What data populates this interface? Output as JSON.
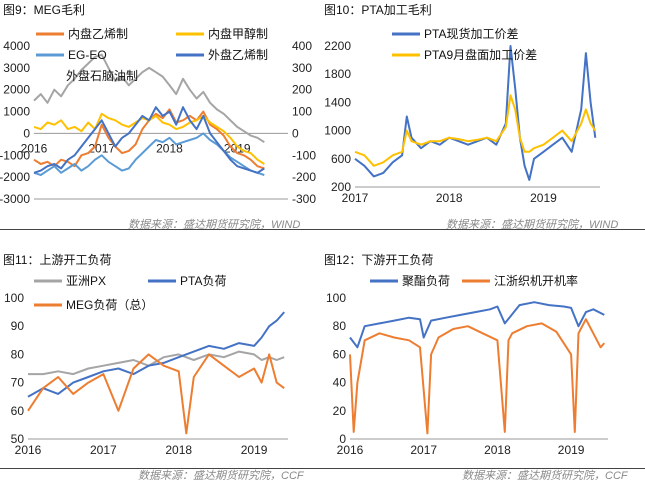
{
  "colors": {
    "orange": "#ED7D31",
    "gold": "#FFC000",
    "lightblue": "#5B9BD5",
    "blue": "#4472C4",
    "grey": "#A5A5A5"
  },
  "sources": {
    "top_left": "数据来源：盛达期货研究院，WIND",
    "top_right": "数据来源：盛达期货研究院，WIND",
    "bottom_left": "数据来源：盛达期货研究院，CCF",
    "bottom_right": "数据来源：盛达期货研究院，CCF"
  },
  "chart_data": [
    {
      "type": "line",
      "title": "图9：MEG毛利",
      "x_ticks": [
        "2016",
        "2017",
        "2018",
        "2019"
      ],
      "x_range": [
        2016.0,
        2019.75
      ],
      "ylim_left": [
        -3000,
        4000
      ],
      "yticks_left": [
        4000,
        3000,
        2000,
        1000,
        0,
        -1000,
        -2000,
        -3000
      ],
      "ylim_right": [
        -300,
        400
      ],
      "yticks_right": [
        400,
        300,
        200,
        100,
        0,
        -100,
        -200,
        -300
      ],
      "legend_position": "top",
      "series": [
        {
          "name": "内盘乙烯制",
          "color": "#ED7D31",
          "axis": "left",
          "x": [
            2016.0,
            2016.1,
            2016.2,
            2016.3,
            2016.4,
            2016.5,
            2016.6,
            2016.7,
            2016.8,
            2016.9,
            2017.0,
            2017.1,
            2017.2,
            2017.3,
            2017.4,
            2017.5,
            2017.6,
            2017.7,
            2017.8,
            2017.9,
            2018.0,
            2018.1,
            2018.2,
            2018.3,
            2018.4,
            2018.5,
            2018.6,
            2018.7,
            2018.8,
            2018.9,
            2019.0,
            2019.1,
            2019.2,
            2019.3,
            2019.4
          ],
          "values": [
            -1200,
            -1400,
            -1300,
            -1500,
            -1200,
            -1300,
            -1500,
            -1000,
            -900,
            -600,
            400,
            -200,
            -600,
            -900,
            -800,
            -500,
            200,
            600,
            900,
            700,
            1100,
            500,
            600,
            800,
            600,
            1000,
            400,
            200,
            -100,
            -600,
            -900,
            -1000,
            -1200,
            -1500,
            -1600
          ]
        },
        {
          "name": "内盘甲醇制",
          "color": "#FFC000",
          "axis": "left",
          "x": [
            2016.0,
            2016.1,
            2016.2,
            2016.3,
            2016.4,
            2016.5,
            2016.6,
            2016.7,
            2016.8,
            2016.9,
            2017.0,
            2017.1,
            2017.2,
            2017.3,
            2017.4,
            2017.5,
            2017.6,
            2017.7,
            2017.8,
            2017.9,
            2018.0,
            2018.1,
            2018.2,
            2018.3,
            2018.4,
            2018.5,
            2018.6,
            2018.7,
            2018.8,
            2018.9,
            2019.0,
            2019.1,
            2019.2,
            2019.3,
            2019.4
          ],
          "values": [
            300,
            200,
            500,
            400,
            600,
            200,
            300,
            100,
            500,
            200,
            900,
            700,
            600,
            400,
            300,
            500,
            700,
            600,
            800,
            500,
            400,
            200,
            300,
            500,
            600,
            800,
            500,
            300,
            100,
            -200,
            -600,
            -800,
            -900,
            -1200,
            -1400
          ]
        },
        {
          "name": "EG-EO",
          "color": "#5B9BD5",
          "axis": "left",
          "x": [
            2016.0,
            2016.1,
            2016.2,
            2016.3,
            2016.4,
            2016.5,
            2016.6,
            2016.7,
            2016.8,
            2016.9,
            2017.0,
            2017.1,
            2017.2,
            2017.3,
            2017.4,
            2017.5,
            2017.6,
            2017.7,
            2017.8,
            2017.9,
            2018.0,
            2018.1,
            2018.2,
            2018.3,
            2018.4,
            2018.5,
            2018.6,
            2018.7,
            2018.8,
            2018.9,
            2019.0,
            2019.1,
            2019.2,
            2019.3,
            2019.4
          ],
          "values": [
            -1800,
            -1900,
            -1700,
            -1500,
            -1800,
            -1600,
            -1400,
            -1700,
            -1500,
            -1200,
            -1000,
            -1300,
            -1500,
            -1700,
            -1600,
            -1200,
            -900,
            -600,
            -300,
            -400,
            -200,
            -500,
            -400,
            -300,
            -200,
            0,
            -300,
            -500,
            -800,
            -1100,
            -1300,
            -1500,
            -1700,
            -1800,
            -1900
          ]
        },
        {
          "name": "外盘乙烯制",
          "color": "#4472C4",
          "axis": "right",
          "x": [
            2016.0,
            2016.1,
            2016.2,
            2016.3,
            2016.4,
            2016.5,
            2016.6,
            2016.7,
            2016.8,
            2016.9,
            2017.0,
            2017.1,
            2017.2,
            2017.3,
            2017.4,
            2017.5,
            2017.6,
            2017.7,
            2017.8,
            2017.9,
            2018.0,
            2018.1,
            2018.2,
            2018.3,
            2018.4,
            2018.5,
            2018.6,
            2018.7,
            2018.8,
            2018.9,
            2019.0,
            2019.1,
            2019.2,
            2019.3,
            2019.4
          ],
          "values": [
            -180,
            -170,
            -150,
            -140,
            -160,
            -120,
            -100,
            -60,
            -20,
            20,
            60,
            0,
            -60,
            -20,
            0,
            40,
            80,
            60,
            120,
            80,
            100,
            40,
            120,
            60,
            20,
            80,
            0,
            -40,
            -80,
            -120,
            -150,
            -160,
            -170,
            -180,
            -160
          ]
        },
        {
          "name": "外盘石脑油制",
          "color": "#A5A5A5",
          "axis": "left",
          "x": [
            2016.0,
            2016.1,
            2016.2,
            2016.3,
            2016.4,
            2016.5,
            2016.6,
            2016.7,
            2016.8,
            2016.9,
            2017.0,
            2017.1,
            2017.2,
            2017.3,
            2017.4,
            2017.5,
            2017.6,
            2017.7,
            2017.8,
            2017.9,
            2018.0,
            2018.1,
            2018.2,
            2018.3,
            2018.4,
            2018.5,
            2018.6,
            2018.7,
            2018.8,
            2018.9,
            2019.0,
            2019.1,
            2019.2,
            2019.3,
            2019.4
          ],
          "values": [
            1500,
            1800,
            1400,
            2000,
            1700,
            2200,
            2500,
            2900,
            3200,
            3500,
            3600,
            3000,
            2400,
            2600,
            2200,
            2500,
            2800,
            3000,
            2800,
            2600,
            2200,
            1800,
            2500,
            2000,
            1600,
            1900,
            1400,
            1100,
            900,
            600,
            300,
            100,
            -100,
            -200,
            -400
          ]
        }
      ]
    },
    {
      "type": "line",
      "title": "图10：PTA加工毛利",
      "x_ticks": [
        "2017",
        "2018",
        "2019"
      ],
      "x_range": [
        2017.0,
        2019.6
      ],
      "ylim": [
        200,
        2200
      ],
      "yticks": [
        2200,
        1800,
        1400,
        1000,
        600,
        200
      ],
      "legend_position": "top",
      "series": [
        {
          "name": "PTA现货加工价差",
          "color": "#4472C4",
          "x": [
            2017.0,
            2017.1,
            2017.2,
            2017.3,
            2017.4,
            2017.5,
            2017.55,
            2017.6,
            2017.7,
            2017.8,
            2017.9,
            2018.0,
            2018.1,
            2018.2,
            2018.3,
            2018.4,
            2018.5,
            2018.6,
            2018.65,
            2018.7,
            2018.75,
            2018.8,
            2018.85,
            2018.9,
            2019.0,
            2019.1,
            2019.2,
            2019.3,
            2019.4,
            2019.45,
            2019.5,
            2019.55
          ],
          "values": [
            600,
            500,
            350,
            400,
            550,
            650,
            1200,
            900,
            750,
            850,
            800,
            900,
            850,
            800,
            850,
            900,
            800,
            1100,
            2200,
            1600,
            900,
            500,
            300,
            600,
            700,
            800,
            900,
            700,
            1300,
            2100,
            1400,
            900
          ]
        },
        {
          "name": "PTA9月盘面加工价差",
          "color": "#FFC000",
          "x": [
            2017.0,
            2017.1,
            2017.2,
            2017.3,
            2017.4,
            2017.5,
            2017.55,
            2017.6,
            2017.7,
            2017.8,
            2017.9,
            2018.0,
            2018.1,
            2018.2,
            2018.3,
            2018.4,
            2018.5,
            2018.6,
            2018.65,
            2018.7,
            2018.75,
            2018.8,
            2018.85,
            2018.9,
            2019.0,
            2019.1,
            2019.2,
            2019.3,
            2019.4,
            2019.45,
            2019.5,
            2019.55
          ],
          "values": [
            700,
            650,
            500,
            550,
            650,
            700,
            1000,
            850,
            800,
            850,
            850,
            900,
            880,
            850,
            870,
            900,
            850,
            1050,
            1500,
            1300,
            900,
            700,
            700,
            750,
            800,
            900,
            1000,
            850,
            1100,
            1300,
            1100,
            1000
          ]
        }
      ]
    },
    {
      "type": "line",
      "title": "图11：上游开工负荷",
      "x_ticks": [
        "2016",
        "2017",
        "2018",
        "2019"
      ],
      "x_range": [
        2016.0,
        2019.45
      ],
      "ylim": [
        50,
        100
      ],
      "yticks": [
        100,
        90,
        80,
        70,
        60,
        50
      ],
      "legend_position": "top",
      "series": [
        {
          "name": "亚洲PX",
          "color": "#A5A5A5",
          "x": [
            2016.0,
            2016.2,
            2016.4,
            2016.6,
            2016.8,
            2017.0,
            2017.2,
            2017.4,
            2017.6,
            2017.8,
            2018.0,
            2018.2,
            2018.4,
            2018.6,
            2018.8,
            2019.0,
            2019.1,
            2019.2,
            2019.3,
            2019.4
          ],
          "values": [
            73,
            73,
            74,
            73,
            75,
            76,
            77,
            78,
            76,
            79,
            80,
            78,
            80,
            79,
            81,
            80,
            78,
            79,
            78,
            79
          ]
        },
        {
          "name": "PTA负荷",
          "color": "#4472C4",
          "x": [
            2016.0,
            2016.2,
            2016.4,
            2016.6,
            2016.8,
            2017.0,
            2017.2,
            2017.4,
            2017.6,
            2017.8,
            2018.0,
            2018.2,
            2018.4,
            2018.6,
            2018.8,
            2019.0,
            2019.1,
            2019.2,
            2019.3,
            2019.4
          ],
          "values": [
            65,
            68,
            66,
            70,
            72,
            74,
            75,
            73,
            76,
            77,
            79,
            81,
            83,
            82,
            84,
            83,
            86,
            90,
            92,
            95
          ]
        },
        {
          "name": "MEG负荷（总）",
          "color": "#ED7D31",
          "x": [
            2016.0,
            2016.2,
            2016.4,
            2016.6,
            2016.8,
            2017.0,
            2017.2,
            2017.4,
            2017.6,
            2017.8,
            2018.0,
            2018.1,
            2018.2,
            2018.4,
            2018.6,
            2018.8,
            2019.0,
            2019.1,
            2019.2,
            2019.3,
            2019.4
          ],
          "values": [
            60,
            68,
            72,
            66,
            70,
            73,
            60,
            75,
            80,
            76,
            74,
            52,
            72,
            80,
            76,
            72,
            75,
            70,
            80,
            70,
            68
          ]
        }
      ]
    },
    {
      "type": "line",
      "title": "图12：下游开工负荷",
      "x_ticks": [
        "2016",
        "2017",
        "2018",
        "2019"
      ],
      "x_range": [
        2016.0,
        2019.5
      ],
      "ylim": [
        0,
        100
      ],
      "yticks": [
        100,
        80,
        60,
        40,
        20,
        0
      ],
      "legend_position": "top",
      "series": [
        {
          "name": "聚酯负荷",
          "color": "#4472C4",
          "x": [
            2016.0,
            2016.1,
            2016.2,
            2016.4,
            2016.6,
            2016.8,
            2016.95,
            2017.0,
            2017.1,
            2017.3,
            2017.5,
            2017.7,
            2017.9,
            2018.0,
            2018.1,
            2018.3,
            2018.5,
            2018.7,
            2018.9,
            2019.0,
            2019.1,
            2019.2,
            2019.3,
            2019.45
          ],
          "values": [
            72,
            65,
            80,
            82,
            84,
            86,
            85,
            72,
            84,
            86,
            88,
            90,
            92,
            94,
            82,
            95,
            97,
            95,
            94,
            93,
            80,
            90,
            92,
            88
          ]
        },
        {
          "name": "江浙织机开机率",
          "color": "#ED7D31",
          "x": [
            2016.0,
            2016.05,
            2016.1,
            2016.2,
            2016.4,
            2016.6,
            2016.8,
            2016.95,
            2017.05,
            2017.1,
            2017.2,
            2017.4,
            2017.6,
            2017.8,
            2018.0,
            2018.1,
            2018.15,
            2018.2,
            2018.4,
            2018.6,
            2018.8,
            2019.0,
            2019.05,
            2019.1,
            2019.2,
            2019.4,
            2019.45
          ],
          "values": [
            60,
            5,
            40,
            70,
            75,
            72,
            70,
            65,
            4,
            60,
            72,
            78,
            80,
            75,
            70,
            5,
            70,
            75,
            80,
            82,
            76,
            60,
            5,
            75,
            85,
            65,
            68
          ]
        }
      ]
    }
  ]
}
